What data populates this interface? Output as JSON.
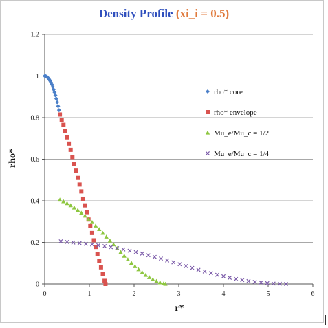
{
  "chart_data": {
    "type": "scatter",
    "title": "Density Profile",
    "subtitle": "(xi_i = 0.5)",
    "xlabel": "r*",
    "ylabel": "rho*",
    "xlim": [
      0,
      6
    ],
    "ylim": [
      0,
      1.2
    ],
    "x_ticks": [
      "0",
      "1",
      "2",
      "3",
      "4",
      "5",
      "6"
    ],
    "y_ticks": [
      "0",
      "0.2",
      "0.4",
      "0.6",
      "0.8",
      "1",
      "1.2"
    ],
    "grid": "horizontal",
    "legend_position": "right",
    "series": [
      {
        "name": "rho* core",
        "marker": "diamond",
        "color": "#4a7fc8",
        "x": [
          0.0,
          0.02,
          0.04,
          0.06,
          0.08,
          0.1,
          0.12,
          0.14,
          0.16,
          0.18,
          0.2,
          0.22,
          0.24,
          0.26,
          0.28,
          0.3,
          0.32,
          0.34
        ],
        "y": [
          1.0,
          0.999,
          0.997,
          0.994,
          0.99,
          0.984,
          0.977,
          0.969,
          0.959,
          0.948,
          0.935,
          0.922,
          0.907,
          0.891,
          0.874,
          0.855,
          0.836,
          0.815
        ]
      },
      {
        "name": "rho* envelope",
        "marker": "square",
        "color": "#d9534f",
        "x": [
          0.34,
          0.38,
          0.42,
          0.46,
          0.5,
          0.54,
          0.58,
          0.62,
          0.66,
          0.7,
          0.74,
          0.78,
          0.82,
          0.86,
          0.9,
          0.94,
          0.98,
          1.02,
          1.06,
          1.1,
          1.14,
          1.18,
          1.22,
          1.26,
          1.3,
          1.34,
          1.36
        ],
        "y": [
          0.815,
          0.79,
          0.765,
          0.735,
          0.705,
          0.675,
          0.645,
          0.61,
          0.578,
          0.545,
          0.51,
          0.478,
          0.445,
          0.41,
          0.378,
          0.345,
          0.31,
          0.278,
          0.245,
          0.21,
          0.178,
          0.145,
          0.112,
          0.08,
          0.048,
          0.015,
          0.0
        ]
      },
      {
        "name": "Mu_e/Mu_c = 1/2",
        "marker": "triangle",
        "color": "#8dc63f",
        "x": [
          0.34,
          0.42,
          0.5,
          0.58,
          0.66,
          0.74,
          0.82,
          0.9,
          0.98,
          1.06,
          1.14,
          1.22,
          1.3,
          1.38,
          1.46,
          1.54,
          1.62,
          1.7,
          1.78,
          1.86,
          1.94,
          2.02,
          2.1,
          2.18,
          2.26,
          2.34,
          2.42,
          2.5,
          2.58,
          2.66,
          2.7
        ],
        "y": [
          0.405,
          0.397,
          0.388,
          0.378,
          0.367,
          0.355,
          0.342,
          0.328,
          0.313,
          0.297,
          0.28,
          0.263,
          0.245,
          0.227,
          0.208,
          0.19,
          0.172,
          0.153,
          0.135,
          0.118,
          0.101,
          0.085,
          0.07,
          0.056,
          0.043,
          0.032,
          0.022,
          0.014,
          0.007,
          0.002,
          0.0
        ]
      },
      {
        "name": "Mu_e/Mu_c = 1/4",
        "marker": "x",
        "color": "#7a5aa8",
        "x": [
          0.36,
          0.5,
          0.64,
          0.78,
          0.92,
          1.06,
          1.2,
          1.34,
          1.48,
          1.62,
          1.76,
          1.9,
          2.04,
          2.18,
          2.32,
          2.46,
          2.6,
          2.74,
          2.88,
          3.02,
          3.16,
          3.3,
          3.44,
          3.58,
          3.72,
          3.86,
          4.0,
          4.14,
          4.28,
          4.42,
          4.56,
          4.7,
          4.84,
          4.98,
          5.12,
          5.26,
          5.4
        ],
        "y": [
          0.205,
          0.202,
          0.199,
          0.196,
          0.193,
          0.19,
          0.186,
          0.182,
          0.177,
          0.172,
          0.166,
          0.16,
          0.153,
          0.146,
          0.138,
          0.13,
          0.122,
          0.113,
          0.104,
          0.095,
          0.086,
          0.077,
          0.068,
          0.06,
          0.052,
          0.044,
          0.037,
          0.03,
          0.024,
          0.019,
          0.014,
          0.01,
          0.007,
          0.004,
          0.002,
          0.001,
          0.0
        ]
      }
    ]
  }
}
